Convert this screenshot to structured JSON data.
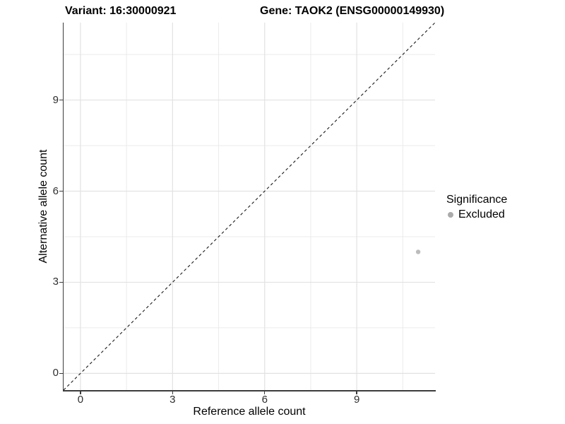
{
  "title": {
    "variant": "Variant: 16:30000921",
    "gene": "Gene: TAOK2 (ENSG00000149930)"
  },
  "axes": {
    "x": {
      "label": "Reference allele count"
    },
    "y": {
      "label": "Alternative allele count"
    }
  },
  "legend": {
    "title": "Significance",
    "items": [
      {
        "label": "Excluded",
        "color": "#ababab"
      }
    ]
  },
  "colors": {
    "background": "#ffffff",
    "grid_major": "#e2e2e2",
    "grid_minor": "#ebebeb",
    "axis_line": "#3c3c3c",
    "tick_text": "#2e2e2e",
    "identity_line": "#1a1a1a",
    "point": "#bcbcbc"
  },
  "chart_data": {
    "type": "scatter",
    "title": "Variant: 16:30000921 | Gene: TAOK2 (ENSG00000149930)",
    "xlabel": "Reference allele count",
    "ylabel": "Alternative allele count",
    "xlim": [
      -0.55,
      11.55
    ],
    "ylim": [
      -0.55,
      11.55
    ],
    "x_ticks": [
      0,
      3,
      6,
      9
    ],
    "y_ticks": [
      0,
      3,
      6,
      9
    ],
    "x_minor_ticks": [
      1.5,
      4.5,
      7.5,
      10.5
    ],
    "y_minor_ticks": [
      1.5,
      4.5,
      7.5,
      10.5
    ],
    "grid": true,
    "legend_position": "right-middle",
    "series": [
      {
        "name": "Excluded",
        "color": "#bcbcbc",
        "point_radius": 3.2,
        "points": [
          {
            "x": 11,
            "y": 4
          }
        ]
      }
    ],
    "reference_line": {
      "kind": "identity",
      "style": "dashed",
      "from": [
        -0.55,
        -0.55
      ],
      "to": [
        11.55,
        11.55
      ],
      "color": "#1a1a1a"
    }
  }
}
